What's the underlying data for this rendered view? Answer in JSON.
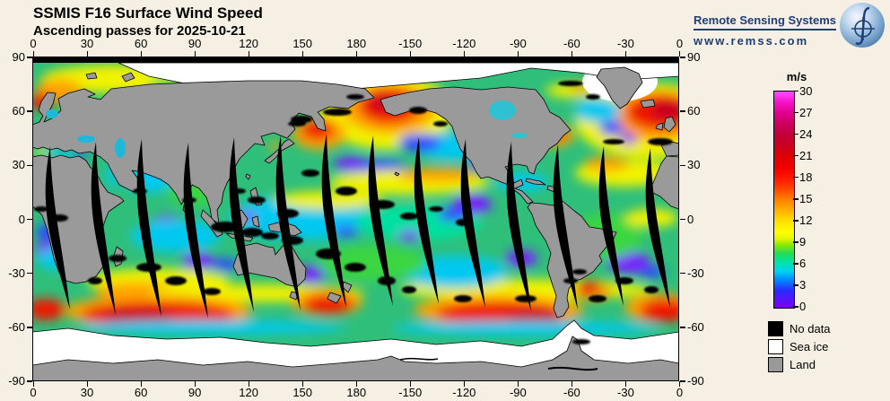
{
  "header": {
    "title": "SSMIS F16 Surface Wind Speed",
    "subtitle": "Ascending passes for 2025-10-21"
  },
  "logo": {
    "name": "Remote Sensing Systems",
    "url": "www.remss.com"
  },
  "map": {
    "lon_ticks": [
      "0",
      "30",
      "60",
      "90",
      "120",
      "150",
      "180",
      "-150",
      "-120",
      "-90",
      "-60",
      "-30",
      "0"
    ],
    "lat_ticks": [
      "90",
      "60",
      "30",
      "0",
      "-30",
      "-60",
      "-90"
    ]
  },
  "colorbar": {
    "unit": "m/s",
    "min": 0,
    "max": 30,
    "tick_labels": [
      "30",
      "27",
      "24",
      "21",
      "18",
      "15",
      "12",
      "9",
      "6",
      "3",
      "0"
    ]
  },
  "legend": [
    {
      "label": "No data",
      "color": "#000000"
    },
    {
      "label": "Sea ice",
      "color": "#ffffff"
    },
    {
      "label": "Land",
      "color": "#9a9a9a"
    }
  ],
  "colors": {
    "background": "#f5f0e3",
    "land": "#9a9a9a",
    "sea_ice": "#ffffff",
    "no_data": "#000000",
    "logo_navy": "#1e3e78"
  }
}
